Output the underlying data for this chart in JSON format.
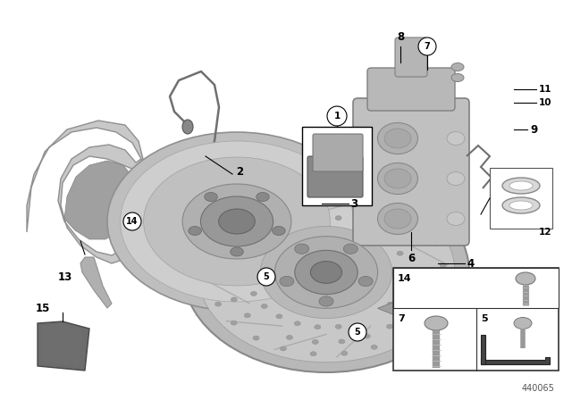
{
  "background_color": "#ffffff",
  "diagram_number": "440065",
  "fig_width": 6.4,
  "fig_height": 4.48,
  "dpi": 100,
  "shield_color": "#c8c8c8",
  "shield_edge": "#909090",
  "disc_color": "#bebebe",
  "disc_mid": "#d0d0d0",
  "disc_hub": "#a8a8a8",
  "disc_hub2": "#909090",
  "caliper_color": "#c0c0c0",
  "caliper_edge": "#808080",
  "pad_dark": "#888888",
  "pad_light": "#aaaaaa",
  "bolt_color": "#aaaaaa",
  "ring_color": "#d8d8d8",
  "pad15_color": "#606060",
  "label_fontsize": 8,
  "line_color": "#000000"
}
